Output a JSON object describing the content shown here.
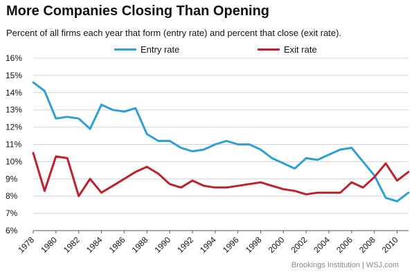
{
  "chart_data": {
    "type": "line",
    "title": "More Companies Closing Than Opening",
    "subtitle": "Percent of all firms each year that  form (entry rate) and percent that close (exit rate).",
    "source": "Brookings Institution  |  WSJ.com",
    "x": [
      1978,
      1979,
      1980,
      1981,
      1982,
      1983,
      1984,
      1985,
      1986,
      1987,
      1988,
      1989,
      1990,
      1991,
      1992,
      1993,
      1994,
      1995,
      1996,
      1997,
      1998,
      1999,
      2000,
      2001,
      2002,
      2003,
      2004,
      2005,
      2006,
      2007,
      2008,
      2009,
      2010,
      2011
    ],
    "x_tick_labels": [
      "1978",
      "1980",
      "1982",
      "1984",
      "1986",
      "1988",
      "1990",
      "1992",
      "1994",
      "1996",
      "1998",
      "2000",
      "2002",
      "2004",
      "2006",
      "2008",
      "2010"
    ],
    "y_tick_labels": [
      "6%",
      "7%",
      "8%",
      "9%",
      "10%",
      "11%",
      "12%",
      "13%",
      "14%",
      "15%",
      "16%"
    ],
    "ylim": [
      6,
      16
    ],
    "xlim": [
      1978,
      2011
    ],
    "grid": true,
    "legend_position": "top",
    "series": [
      {
        "name": "Entry rate",
        "color": "#2e9fd6",
        "values": [
          14.6,
          14.1,
          12.5,
          12.6,
          12.5,
          11.9,
          13.3,
          13.0,
          12.9,
          13.1,
          11.6,
          11.2,
          11.2,
          10.8,
          10.6,
          10.7,
          11.0,
          11.2,
          11.0,
          11.0,
          10.7,
          10.2,
          9.9,
          9.6,
          10.2,
          10.1,
          10.4,
          10.7,
          10.8,
          10.0,
          9.2,
          7.9,
          7.7,
          8.2
        ]
      },
      {
        "name": "Exit rate",
        "color": "#c0202d",
        "values": [
          10.5,
          8.3,
          10.3,
          10.2,
          8.0,
          9.0,
          8.2,
          8.6,
          9.0,
          9.4,
          9.7,
          9.3,
          8.7,
          8.5,
          8.9,
          8.6,
          8.5,
          8.5,
          8.6,
          8.7,
          8.8,
          8.6,
          8.4,
          8.3,
          8.1,
          8.2,
          8.2,
          8.2,
          8.8,
          8.5,
          9.1,
          9.9,
          8.9,
          9.4
        ]
      }
    ]
  }
}
